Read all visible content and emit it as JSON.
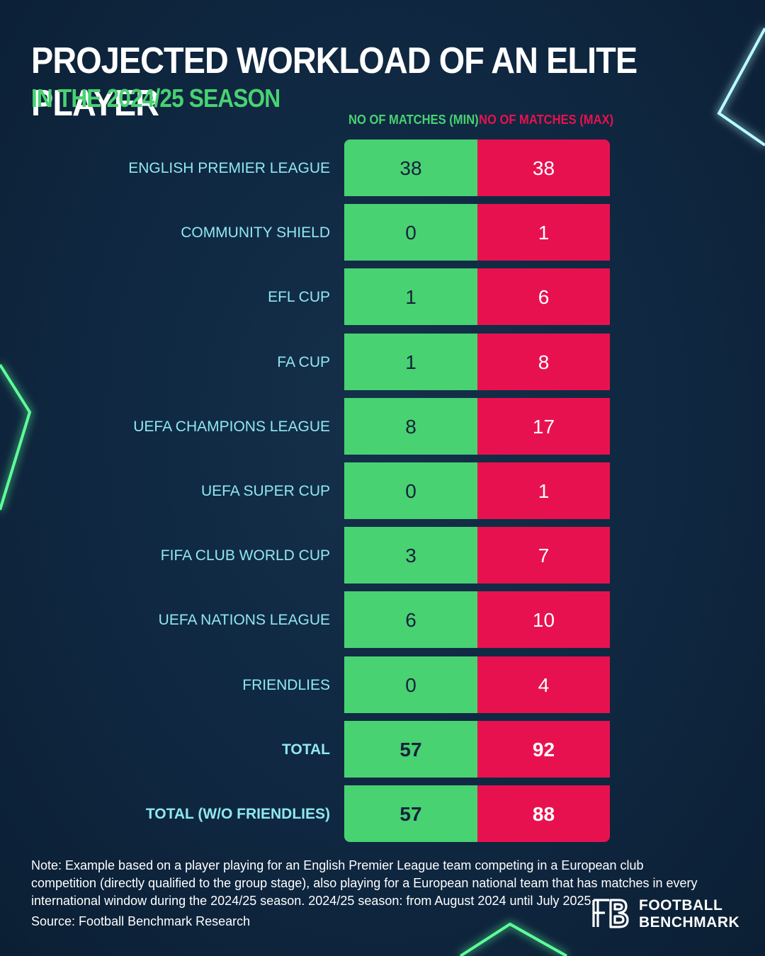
{
  "chart_data": {
    "type": "table",
    "title": "PROJECTED WORKLOAD OF AN ELITE PLAYER",
    "subtitle": "IN THE 2024/25 SEASON",
    "columns": [
      "NO OF MATCHES (MIN)",
      "NO OF MATCHES (MAX)"
    ],
    "rows": [
      {
        "label": "ENGLISH PREMIER LEAGUE",
        "min": 38,
        "max": 38
      },
      {
        "label": "COMMUNITY SHIELD",
        "min": 0,
        "max": 1
      },
      {
        "label": "EFL CUP",
        "min": 1,
        "max": 6
      },
      {
        "label": "FA CUP",
        "min": 1,
        "max": 8
      },
      {
        "label": "UEFA CHAMPIONS LEAGUE",
        "min": 8,
        "max": 17
      },
      {
        "label": "UEFA SUPER CUP",
        "min": 0,
        "max": 1
      },
      {
        "label": "FIFA CLUB WORLD CUP",
        "min": 3,
        "max": 7
      },
      {
        "label": "UEFA NATIONS LEAGUE",
        "min": 6,
        "max": 10
      },
      {
        "label": "FRIENDLIES",
        "min": 0,
        "max": 4
      },
      {
        "label": "TOTAL",
        "min": 57,
        "max": 92
      },
      {
        "label": "TOTAL (W/O FRIENDLIES)",
        "min": 57,
        "max": 88
      }
    ],
    "min_color": "#48d272",
    "max_color": "#e8114f"
  },
  "footer": {
    "note": "Note: Example based on a player playing for an English Premier League team competing in a European club competition (directly qualified to the group stage), also playing for a European national team that has matches in every international window during the 2024/25 season. 2024/25 season: from August 2024 until July 2025.",
    "source": "Source: Football Benchmark Research"
  },
  "logo": {
    "line1": "FOOTBALL",
    "line2": "BENCHMARK",
    "icon": "fb-monogram-icon"
  }
}
